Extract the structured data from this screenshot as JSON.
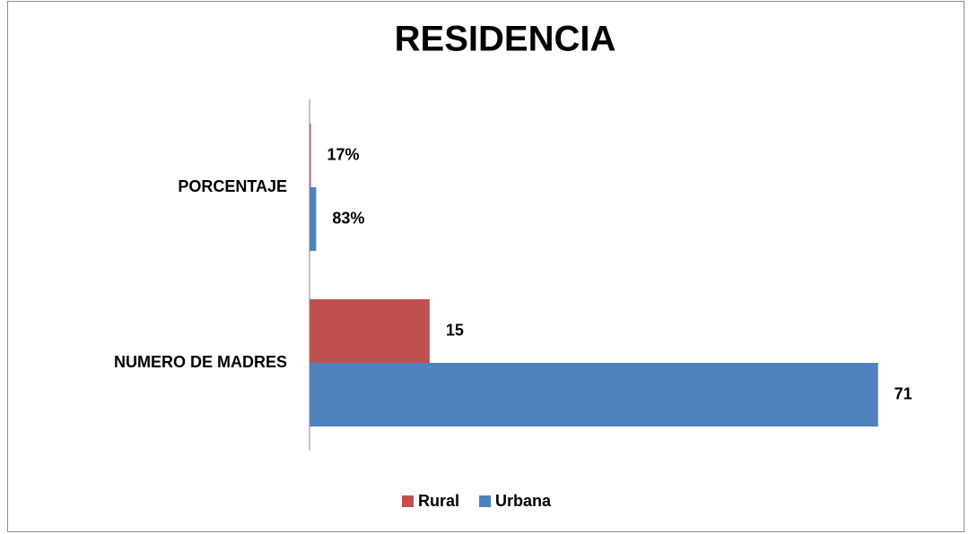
{
  "chart_data": {
    "type": "hbar",
    "title": "RESIDENCIA",
    "categories": [
      "PORCENTAJE",
      "NUMERO DE MADRES"
    ],
    "series": [
      {
        "name": "Rural",
        "color": "#c0504d",
        "values": [
          0.17,
          15
        ],
        "value_labels": [
          "17%",
          "15"
        ]
      },
      {
        "name": "Urbana",
        "color": "#4f81bd",
        "values": [
          0.83,
          71
        ],
        "value_labels": [
          "83%",
          "71"
        ]
      }
    ],
    "xlim": [
      0,
      80
    ],
    "legend": "bottom"
  }
}
